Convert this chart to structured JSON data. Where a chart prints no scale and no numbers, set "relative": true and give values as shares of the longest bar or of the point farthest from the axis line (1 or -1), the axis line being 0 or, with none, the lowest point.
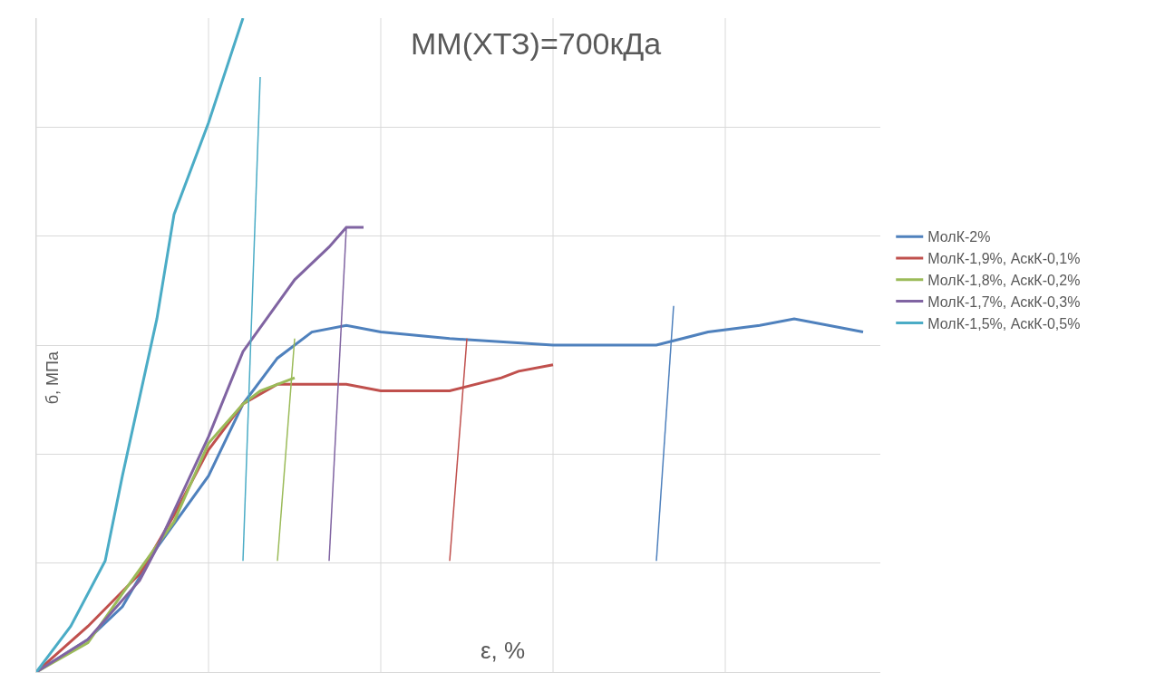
{
  "chart_data": {
    "type": "line",
    "title": "ММ(ХТЗ)=700кДа",
    "xlabel": "ε, %",
    "ylabel": "б, МПа",
    "relative": true,
    "grid": true,
    "legend": "right",
    "marker": "none",
    "line_style": "solid",
    "categories": [
      null,
      null,
      null,
      null,
      null,
      null,
      null,
      null,
      null,
      null,
      null,
      null,
      null,
      null,
      null,
      null,
      null,
      null,
      null,
      null,
      null,
      null,
      null,
      null,
      null,
      null,
      null,
      null,
      null,
      null,
      null,
      null,
      null,
      null,
      null,
      null,
      null,
      null,
      null,
      null,
      null,
      null,
      null,
      null,
      null,
      null,
      null,
      null,
      null,
      null
    ],
    "series": [
      {
        "name": "МолК-2%",
        "color": "#4f81bd",
        "values": [
          0,
          null,
          null,
          0.05,
          null,
          0.1,
          null,
          0.19,
          null,
          null,
          0.3,
          null,
          0.41,
          null,
          0.48,
          null,
          0.52,
          null,
          0.53,
          null,
          0.52,
          null,
          null,
          null,
          0.51,
          null,
          null,
          null,
          null,
          null,
          0.5,
          null,
          null,
          null,
          null,
          null,
          0.5,
          null,
          null,
          0.52,
          null,
          null,
          0.53,
          null,
          0.54,
          null,
          0.53,
          null,
          0.52,
          null
        ]
      },
      {
        "name": "МолК-1,9%, АскК-0,1%",
        "color": "#c0504d",
        "values": [
          0,
          null,
          null,
          0.07,
          null,
          null,
          0.15,
          null,
          0.24,
          null,
          0.34,
          null,
          0.41,
          null,
          0.44,
          0.44,
          null,
          null,
          0.44,
          null,
          0.43,
          null,
          null,
          null,
          0.43,
          null,
          null,
          0.45,
          0.46,
          null,
          0.47,
          null,
          null,
          null,
          null,
          null,
          null,
          null,
          null,
          null,
          null,
          null,
          null,
          null,
          null,
          null,
          null,
          null,
          null,
          null
        ]
      },
      {
        "name": "МолК-1,8%, АскК-0,2%",
        "color": "#9bbb59",
        "values": [
          0,
          null,
          null,
          0.045,
          null,
          0.12,
          null,
          null,
          0.23,
          null,
          0.35,
          null,
          0.41,
          0.43,
          0.44,
          0.45,
          null,
          null,
          null,
          null,
          null,
          null,
          null,
          null,
          null,
          null,
          null,
          null,
          null,
          null,
          null,
          null,
          null,
          null,
          null,
          null,
          null,
          null,
          null,
          null,
          null,
          null,
          null,
          null,
          null,
          null,
          null,
          null,
          null,
          null
        ]
      },
      {
        "name": "МолК-1,7%, АскК-0,3%",
        "color": "#8064a2",
        "values": [
          0,
          null,
          null,
          0.05,
          null,
          null,
          0.14,
          0.19,
          null,
          null,
          0.36,
          null,
          0.49,
          null,
          null,
          0.6,
          null,
          0.65,
          0.68,
          0.68,
          null,
          null,
          null,
          null,
          null,
          null,
          null,
          null,
          null,
          null,
          null,
          null,
          null,
          null,
          null,
          null,
          null,
          null,
          null,
          null,
          null,
          null,
          null,
          null,
          null,
          null,
          null,
          null,
          null,
          null
        ]
      },
      {
        "name": "МолК-1,5%, АскК-0,5%",
        "color": "#4bacc6",
        "values": [
          0,
          null,
          0.07,
          null,
          0.17,
          0.3,
          null,
          0.54,
          0.7,
          null,
          0.84,
          null,
          1.0,
          null,
          null,
          null,
          null,
          null,
          null,
          null,
          null,
          null,
          null,
          null,
          null,
          null,
          null,
          null,
          null,
          null,
          null,
          null,
          null,
          null,
          null,
          null,
          null,
          null,
          null,
          null,
          null,
          null,
          null,
          null,
          null,
          null,
          null,
          null,
          null,
          null
        ]
      },
      {
        "color": "#4bacc6",
        "values": [
          null,
          null,
          null,
          null,
          null,
          null,
          null,
          null,
          null,
          null,
          null,
          null,
          0.17,
          0.91,
          null,
          null,
          null,
          null,
          null,
          null,
          null,
          null,
          null,
          null,
          null,
          null,
          null,
          null,
          null,
          null,
          null,
          null,
          null,
          null,
          null,
          null,
          null,
          null,
          null,
          null,
          null,
          null,
          null,
          null,
          null,
          null,
          null,
          null,
          null,
          null
        ]
      },
      {
        "color": "#9bbb59",
        "values": [
          null,
          null,
          null,
          null,
          null,
          null,
          null,
          null,
          null,
          null,
          null,
          null,
          null,
          null,
          0.17,
          0.51,
          null,
          null,
          null,
          null,
          null,
          null,
          null,
          null,
          null,
          null,
          null,
          null,
          null,
          null,
          null,
          null,
          null,
          null,
          null,
          null,
          null,
          null,
          null,
          null,
          null,
          null,
          null,
          null,
          null,
          null,
          null,
          null,
          null,
          null
        ]
      },
      {
        "color": "#8064a2",
        "values": [
          null,
          null,
          null,
          null,
          null,
          null,
          null,
          null,
          null,
          null,
          null,
          null,
          null,
          null,
          null,
          null,
          null,
          0.17,
          0.68,
          null,
          null,
          null,
          null,
          null,
          null,
          null,
          null,
          null,
          null,
          null,
          null,
          null,
          null,
          null,
          null,
          null,
          null,
          null,
          null,
          null,
          null,
          null,
          null,
          null,
          null,
          null,
          null,
          null,
          null,
          null
        ]
      },
      {
        "color": "#c0504d",
        "values": [
          null,
          null,
          null,
          null,
          null,
          null,
          null,
          null,
          null,
          null,
          null,
          null,
          null,
          null,
          null,
          null,
          null,
          null,
          null,
          null,
          null,
          null,
          null,
          null,
          0.17,
          0.51,
          null,
          null,
          null,
          null,
          null,
          null,
          null,
          null,
          null,
          null,
          null,
          null,
          null,
          null,
          null,
          null,
          null,
          null,
          null,
          null,
          null,
          null,
          null,
          null
        ]
      },
      {
        "color": "#4f81bd",
        "values": [
          null,
          null,
          null,
          null,
          null,
          null,
          null,
          null,
          null,
          null,
          null,
          null,
          null,
          null,
          null,
          null,
          null,
          null,
          null,
          null,
          null,
          null,
          null,
          null,
          null,
          null,
          null,
          null,
          null,
          null,
          null,
          null,
          null,
          null,
          null,
          null,
          0.17,
          0.56,
          null,
          null,
          null,
          null,
          null,
          null,
          null,
          null,
          null,
          null,
          null,
          null
        ]
      }
    ]
  }
}
